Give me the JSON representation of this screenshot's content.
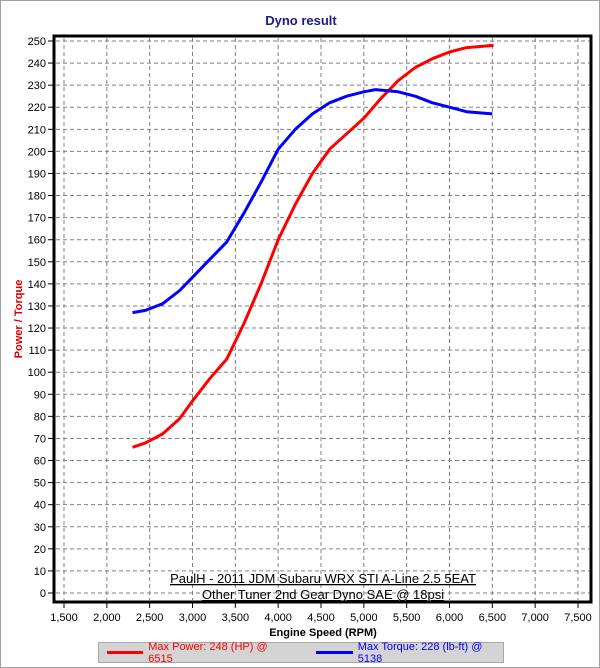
{
  "chart_data": {
    "type": "line",
    "title": "Dyno result",
    "xlabel": "Engine Speed (RPM)",
    "ylabel": "Power / Torque",
    "xlim": [
      1500,
      7500
    ],
    "ylim": [
      0,
      250
    ],
    "xticks": [
      1500,
      2000,
      2500,
      3000,
      3500,
      4000,
      4500,
      5000,
      5500,
      6000,
      6500,
      7000,
      7500
    ],
    "xtick_labels": [
      "1,500",
      "2,000",
      "2,500",
      "3,000",
      "3,500",
      "4,000",
      "4,500",
      "5,000",
      "5,500",
      "6,000",
      "6,500",
      "7,000",
      "7,500"
    ],
    "yticks": [
      0,
      10,
      20,
      30,
      40,
      50,
      60,
      70,
      80,
      90,
      100,
      110,
      120,
      130,
      140,
      150,
      160,
      170,
      180,
      190,
      200,
      210,
      220,
      230,
      240,
      250
    ],
    "grid": true,
    "legend_placement": "bottom",
    "annotations": [
      "PaulH - 2011 JDM Subaru WRX STI A-Line 2.5 5EAT",
      "Other Tuner 2nd Gear Dyno SAE @ 18psi"
    ],
    "series": [
      {
        "name": "Max Power: 248 (HP) @ 6515",
        "color": "#ff0000",
        "x": [
          2300,
          2450,
          2650,
          2850,
          3000,
          3200,
          3400,
          3600,
          3800,
          4000,
          4200,
          4400,
          4600,
          4800,
          5000,
          5200,
          5400,
          5600,
          5800,
          6000,
          6200,
          6515
        ],
        "y": [
          66,
          68,
          72,
          79,
          87,
          97,
          106,
          122,
          140,
          160,
          176,
          190,
          201,
          208,
          215,
          224,
          232,
          238,
          242,
          245,
          247,
          248
        ]
      },
      {
        "name": "Max Torque: 228 (lb-ft) @ 5138",
        "color": "#0000ff",
        "x": [
          2300,
          2450,
          2650,
          2850,
          3000,
          3200,
          3400,
          3600,
          3800,
          4000,
          4200,
          4400,
          4600,
          4800,
          5000,
          5138,
          5400,
          5600,
          5800,
          6000,
          6200,
          6500
        ],
        "y": [
          127,
          128,
          131,
          137,
          143,
          151,
          159,
          172,
          186,
          201,
          210,
          217,
          222,
          225,
          227,
          228,
          227,
          225,
          222,
          220,
          218,
          217
        ]
      }
    ]
  }
}
